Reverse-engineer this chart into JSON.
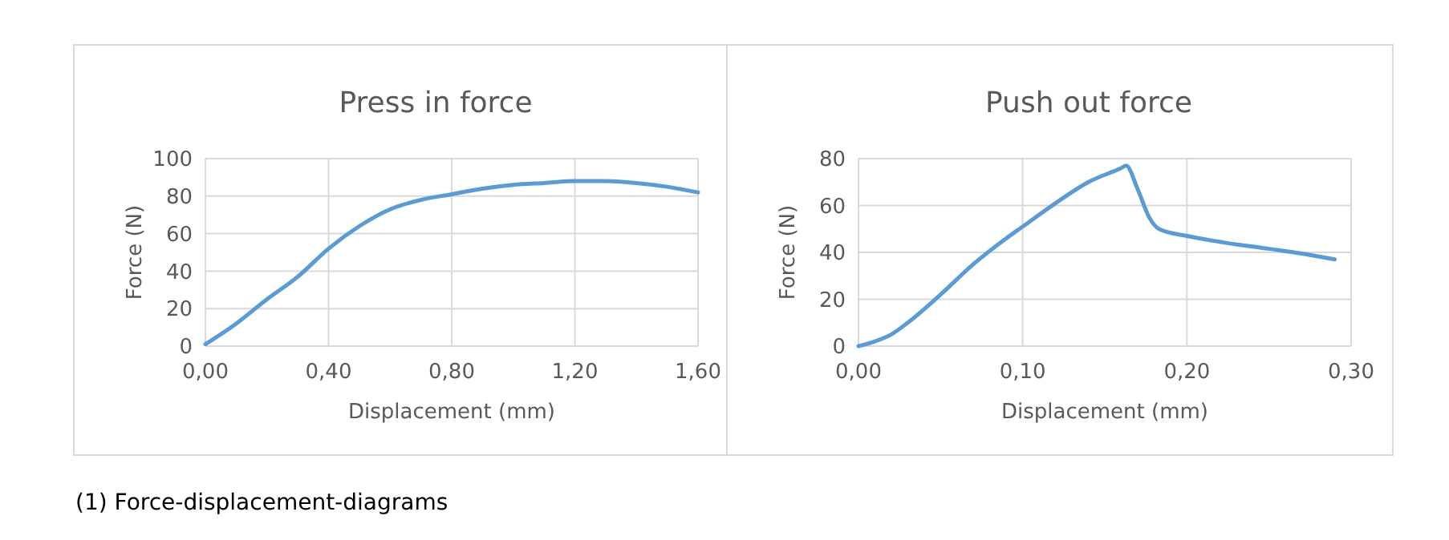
{
  "chart_data": [
    {
      "type": "line",
      "title": "Press in force",
      "xlabel": "Displacement (mm)",
      "ylabel": "Force (N)",
      "annotations": [
        "(1) Force-displacement-diagrams"
      ],
      "grid": true,
      "marker": "none",
      "line_style": "solid",
      "xlim": [
        0,
        1.6
      ],
      "ylim": [
        0,
        100
      ],
      "xticks": [
        {
          "value": 0,
          "label": "0,00"
        },
        {
          "value": 0.4,
          "label": "0,40"
        },
        {
          "value": 0.8,
          "label": "0,80"
        },
        {
          "value": 1.2,
          "label": "1,20"
        },
        {
          "value": 1.6,
          "label": "1,60"
        }
      ],
      "yticks": [
        0,
        20,
        40,
        60,
        80,
        100
      ],
      "series": [
        {
          "color": "#5b9bd5",
          "x": [
            0,
            0.1,
            0.2,
            0.3,
            0.4,
            0.5,
            0.6,
            0.7,
            0.8,
            0.9,
            1.0,
            1.1,
            1.2,
            1.3,
            1.4,
            1.5,
            1.6
          ],
          "values": [
            1,
            12,
            25,
            37,
            52,
            64,
            73,
            78,
            81,
            84,
            86,
            87,
            88,
            88,
            87,
            85,
            82
          ]
        }
      ]
    },
    {
      "type": "line",
      "title": "Push out force",
      "xlabel": "Displacement (mm)",
      "ylabel": "Force (N)",
      "grid": true,
      "marker": "none",
      "line_style": "solid",
      "xlim": [
        0,
        0.3
      ],
      "ylim": [
        0,
        80
      ],
      "xticks": [
        {
          "value": 0,
          "label": "0,00"
        },
        {
          "value": 0.1,
          "label": "0,10"
        },
        {
          "value": 0.2,
          "label": "0,20"
        },
        {
          "value": 0.3,
          "label": "0,30"
        }
      ],
      "yticks": [
        0,
        20,
        40,
        60,
        80
      ],
      "series": [
        {
          "color": "#5b9bd5",
          "x": [
            0,
            0.01,
            0.02,
            0.03,
            0.05,
            0.07,
            0.09,
            0.1,
            0.12,
            0.14,
            0.16,
            0.163,
            0.17,
            0.177,
            0.183,
            0.2,
            0.22,
            0.25,
            0.27,
            0.29
          ],
          "values": [
            0,
            2,
            5,
            10,
            22,
            35,
            46,
            51,
            61,
            70,
            76,
            77,
            67,
            55,
            50,
            47,
            44.5,
            41.5,
            39.5,
            37
          ]
        }
      ]
    }
  ]
}
